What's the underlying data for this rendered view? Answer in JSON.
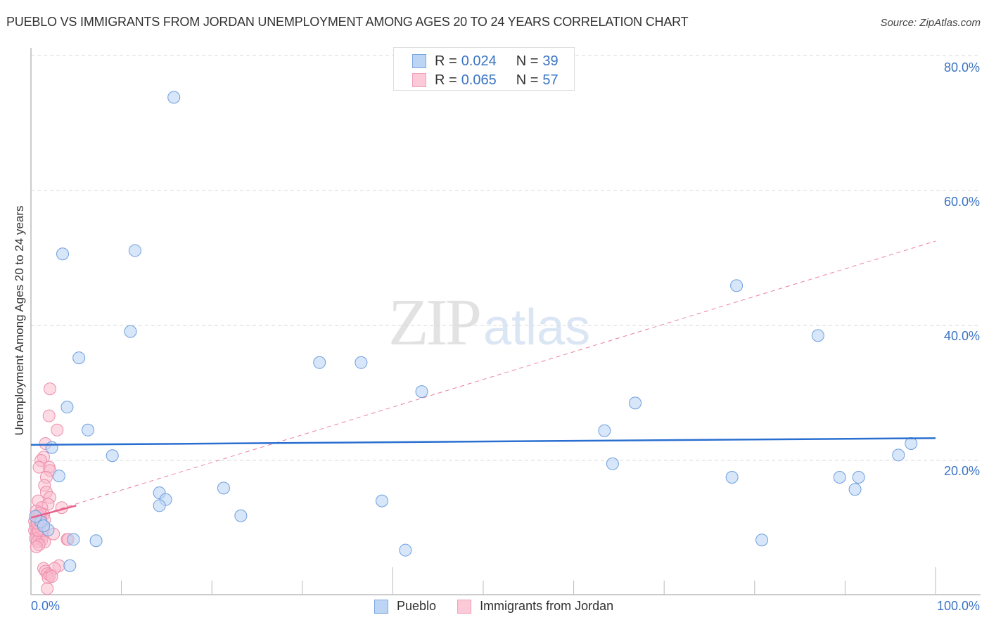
{
  "header": {
    "title": "PUEBLO VS IMMIGRANTS FROM JORDAN UNEMPLOYMENT AMONG AGES 20 TO 24 YEARS CORRELATION CHART",
    "source": "Source: ZipAtlas.com"
  },
  "watermark": {
    "zip": "ZIP",
    "atlas": "atlas"
  },
  "legend_top": {
    "rows": [
      {
        "series": "Pueblo",
        "r_label": "R =",
        "r_value": "0.024",
        "n_label": "N =",
        "n_value": "39",
        "fill": "#bcd5f5",
        "stroke": "#7aa6e0"
      },
      {
        "series": "Immigrants from Jordan",
        "r_label": "R =",
        "r_value": "0.065",
        "n_label": "N =",
        "n_value": "57",
        "fill": "#fcc9d8",
        "stroke": "#f0a0b8"
      }
    ]
  },
  "legend_bottom": {
    "items": [
      {
        "label": "Pueblo",
        "fill": "#bcd5f5",
        "stroke": "#7aa6e0"
      },
      {
        "label": "Immigrants from Jordan",
        "fill": "#fcc9d8",
        "stroke": "#f0a0b8"
      }
    ]
  },
  "axes": {
    "y_label": "Unemployment Among Ages 20 to 24 years",
    "y_ticks": [
      "80.0%",
      "60.0%",
      "40.0%",
      "20.0%"
    ],
    "x_left": "0.0%",
    "x_right": "100.0%"
  },
  "colors": {
    "pueblo_fill": "#bcd5f5",
    "pueblo_stroke": "#6f9fde",
    "pueblo_line": "#2a6fd0",
    "jordan_fill": "#f9b8cb",
    "jordan_stroke": "#ec8eab",
    "jordan_line": "#e8608a",
    "grid": "#d8d8d8",
    "tick_text": "#3a73c4"
  },
  "chart_data": {
    "type": "scatter",
    "title": "PUEBLO VS IMMIGRANTS FROM JORDAN UNEMPLOYMENT AMONG AGES 20 TO 24 YEARS CORRELATION CHART",
    "xlabel": "",
    "ylabel": "Unemployment Among Ages 20 to 24 years",
    "xlim": [
      0,
      100
    ],
    "ylim": [
      0,
      82
    ],
    "x_unit": "%",
    "y_unit": "%",
    "y_ticks": [
      20,
      40,
      60,
      80
    ],
    "x_tick_labels": [
      "0.0%",
      "100.0%"
    ],
    "grid": "horizontal dashed",
    "legend_position": "top-center and bottom-center",
    "series": [
      {
        "name": "Pueblo",
        "R": 0.024,
        "N": 39,
        "trend": {
          "x": [
            0,
            100
          ],
          "y": [
            22.3,
            23.3
          ],
          "style": "solid"
        },
        "points": [
          [
            15.8,
            73.8
          ],
          [
            3.5,
            50.6
          ],
          [
            11.5,
            51.1
          ],
          [
            11.0,
            39.1
          ],
          [
            5.3,
            35.2
          ],
          [
            4.0,
            27.9
          ],
          [
            6.3,
            24.5
          ],
          [
            2.3,
            21.9
          ],
          [
            9.0,
            20.7
          ],
          [
            3.1,
            17.7
          ],
          [
            14.2,
            15.2
          ],
          [
            14.9,
            14.2
          ],
          [
            14.2,
            13.3
          ],
          [
            21.3,
            15.9
          ],
          [
            23.2,
            11.8
          ],
          [
            4.7,
            8.3
          ],
          [
            7.2,
            8.1
          ],
          [
            4.3,
            4.4
          ],
          [
            1.9,
            9.7
          ],
          [
            31.9,
            34.5
          ],
          [
            36.5,
            34.5
          ],
          [
            43.2,
            30.2
          ],
          [
            38.8,
            14.0
          ],
          [
            41.4,
            6.7
          ],
          [
            63.4,
            24.4
          ],
          [
            66.8,
            28.5
          ],
          [
            64.3,
            19.5
          ],
          [
            78.0,
            45.9
          ],
          [
            77.5,
            17.5
          ],
          [
            80.8,
            8.2
          ],
          [
            87.0,
            38.5
          ],
          [
            89.4,
            17.5
          ],
          [
            91.5,
            17.5
          ],
          [
            91.1,
            15.7
          ],
          [
            95.9,
            20.8
          ],
          [
            97.3,
            22.5
          ],
          [
            1.1,
            10.9
          ],
          [
            1.4,
            10.3
          ],
          [
            0.5,
            11.7
          ]
        ]
      },
      {
        "name": "Immigrants from Jordan",
        "R": 0.065,
        "N": 57,
        "trend": {
          "x": [
            0,
            5
          ],
          "y": [
            11.5,
            13.3
          ],
          "style": "solid",
          "extended": {
            "x": [
              0,
              100
            ],
            "y": [
              11.5,
              52.5
            ],
            "style": "dashed"
          }
        },
        "points": [
          [
            2.1,
            30.6
          ],
          [
            2.0,
            26.6
          ],
          [
            2.9,
            24.5
          ],
          [
            1.6,
            22.5
          ],
          [
            1.4,
            20.5
          ],
          [
            1.1,
            20.0
          ],
          [
            2.0,
            19.0
          ],
          [
            0.9,
            19.0
          ],
          [
            2.1,
            18.5
          ],
          [
            1.7,
            17.5
          ],
          [
            1.5,
            16.3
          ],
          [
            1.7,
            15.3
          ],
          [
            2.1,
            14.5
          ],
          [
            0.8,
            14.0
          ],
          [
            1.9,
            13.5
          ],
          [
            3.4,
            13.0
          ],
          [
            1.2,
            13.0
          ],
          [
            0.6,
            12.5
          ],
          [
            1.4,
            12.0
          ],
          [
            0.9,
            11.8
          ],
          [
            0.6,
            11.5
          ],
          [
            1.5,
            11.2
          ],
          [
            0.4,
            11.0
          ],
          [
            0.9,
            10.8
          ],
          [
            1.2,
            10.6
          ],
          [
            0.5,
            10.3
          ],
          [
            1.0,
            10.1
          ],
          [
            0.7,
            9.9
          ],
          [
            1.4,
            9.7
          ],
          [
            0.4,
            9.6
          ],
          [
            0.8,
            9.4
          ],
          [
            1.1,
            9.2
          ],
          [
            0.6,
            9.0
          ],
          [
            1.3,
            8.8
          ],
          [
            0.9,
            8.6
          ],
          [
            0.5,
            8.4
          ],
          [
            1.2,
            8.2
          ],
          [
            0.7,
            8.0
          ],
          [
            1.5,
            7.9
          ],
          [
            0.9,
            7.5
          ],
          [
            0.6,
            7.2
          ],
          [
            2.5,
            9.1
          ],
          [
            4.0,
            8.3
          ],
          [
            4.1,
            8.3
          ],
          [
            3.1,
            4.4
          ],
          [
            2.6,
            4.0
          ],
          [
            1.4,
            4.0
          ],
          [
            1.6,
            3.6
          ],
          [
            1.8,
            3.2
          ],
          [
            2.1,
            3.0
          ],
          [
            1.9,
            2.6
          ],
          [
            2.3,
            2.8
          ],
          [
            1.8,
            1.0
          ],
          [
            0.8,
            9.6
          ],
          [
            1.1,
            11.3
          ],
          [
            0.7,
            10.7
          ],
          [
            1.0,
            12.2
          ]
        ]
      }
    ]
  }
}
